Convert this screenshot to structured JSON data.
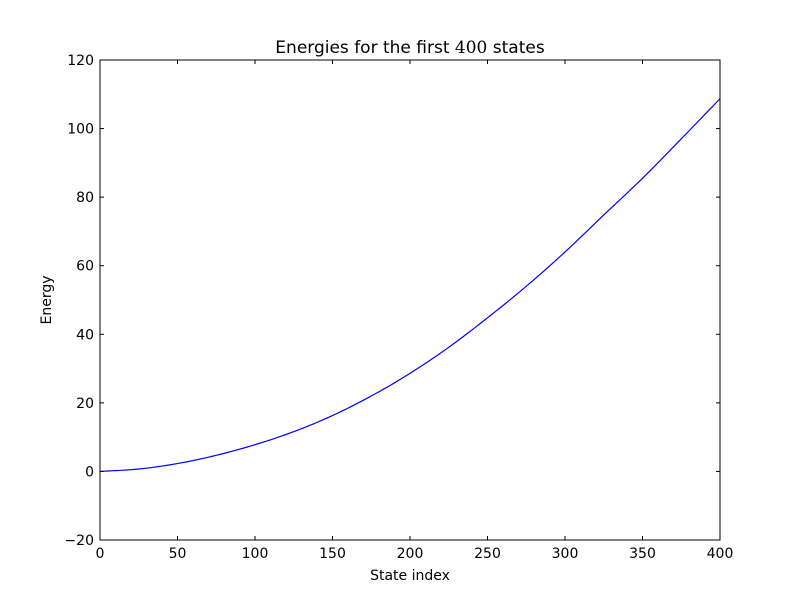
{
  "chart_data": {
    "type": "line",
    "title": "Energies for the first 400 states",
    "title_prefix": "Energies for the first ",
    "title_math": "400",
    "title_suffix": " states",
    "xlabel": "State index",
    "ylabel": "Energy",
    "xlim": [
      0,
      400
    ],
    "ylim": [
      -20,
      120
    ],
    "xticks": [
      0,
      50,
      100,
      150,
      200,
      250,
      300,
      350,
      400
    ],
    "yticks": [
      -20,
      0,
      20,
      40,
      60,
      80,
      100,
      120
    ],
    "xtick_labels": [
      "0",
      "50",
      "100",
      "150",
      "200",
      "250",
      "300",
      "350",
      "400"
    ],
    "ytick_labels": [
      "−20",
      "0",
      "20",
      "40",
      "60",
      "80",
      "100",
      "120"
    ],
    "grid": false,
    "legend": "none",
    "series": [
      {
        "color": "#0000ff",
        "x": [
          0,
          25,
          50,
          75,
          100,
          125,
          150,
          175,
          200,
          225,
          250,
          275,
          300,
          325,
          350,
          375,
          400
        ],
        "y": [
          0,
          0.7,
          2.3,
          4.7,
          7.8,
          11.6,
          16.3,
          22.0,
          28.6,
          36.2,
          44.8,
          54.0,
          64.0,
          74.8,
          85.5,
          97.0,
          108.7
        ]
      }
    ]
  }
}
